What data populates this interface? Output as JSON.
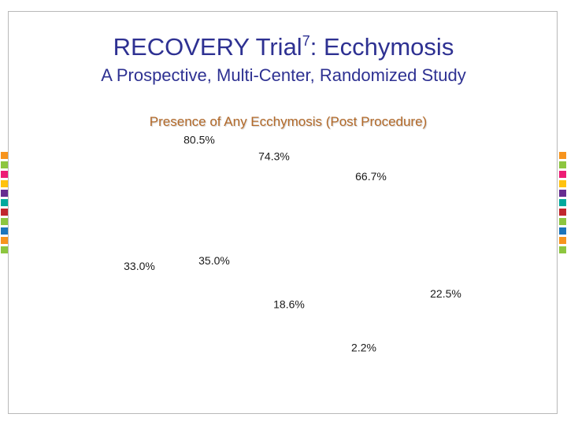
{
  "slide": {
    "title_main": "RECOVERY Trial",
    "title_sup": "7",
    "title_rest": ": Ecchymosis",
    "subtitle": "A Prospective, Multi-Center, Randomized Study"
  },
  "decoration": {
    "colors": [
      "#f7941d",
      "#8dc63f",
      "#ed1c75",
      "#ffc20e",
      "#662d91",
      "#00a99d",
      "#c1272d",
      "#8dc63f",
      "#1b75bc",
      "#f7941d",
      "#8dc63f",
      "#662d91",
      "#ed1c75",
      "#00a99d",
      "#8dc63f",
      "#c1272d"
    ]
  },
  "chart_data": {
    "type": "bar",
    "title": "Presence of Any Ecchymosis (Post Procedure)",
    "categories": [
      "",
      "",
      "",
      ""
    ],
    "series": [
      {
        "values": [
          80.5,
          74.3,
          66.7,
          22.5
        ]
      },
      {
        "values": [
          33.0,
          35.0,
          18.6,
          2.2
        ]
      }
    ],
    "data_labels": [
      [
        "80.5%",
        "74.3%",
        "66.7%",
        "22.5%"
      ],
      [
        "33.0%",
        "35.0%",
        "18.6%",
        "2.2%"
      ]
    ],
    "bars_visible": false,
    "grid": false
  }
}
